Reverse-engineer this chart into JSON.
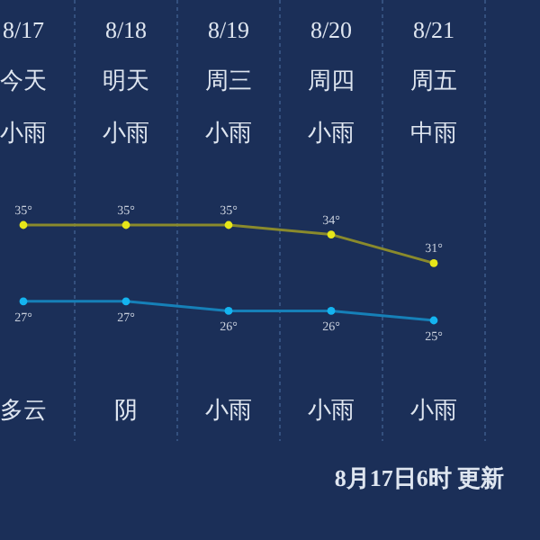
{
  "chart_data": {
    "type": "line",
    "categories": [
      "8/17",
      "8/18",
      "8/19",
      "8/20",
      "8/21"
    ],
    "series": [
      {
        "color": "#e6e619",
        "values": [
          35,
          35,
          35,
          34,
          31
        ],
        "value_labels": [
          "35°",
          "35°",
          "35°",
          "34°",
          "31°"
        ]
      },
      {
        "color": "#14b4f0",
        "values": [
          27,
          27,
          26,
          26,
          25
        ],
        "value_labels": [
          "27°",
          "27°",
          "26°",
          "26°",
          "25°"
        ]
      }
    ],
    "marker": "circle",
    "grid": "x",
    "annotations": [
      "今天",
      "明天",
      "周三",
      "周四",
      "周五",
      "小雨",
      "小雨",
      "小雨",
      "小雨",
      "中雨",
      "多云",
      "阴",
      "小雨",
      "小雨",
      "小雨",
      "8月17日6时 更新"
    ]
  }
}
